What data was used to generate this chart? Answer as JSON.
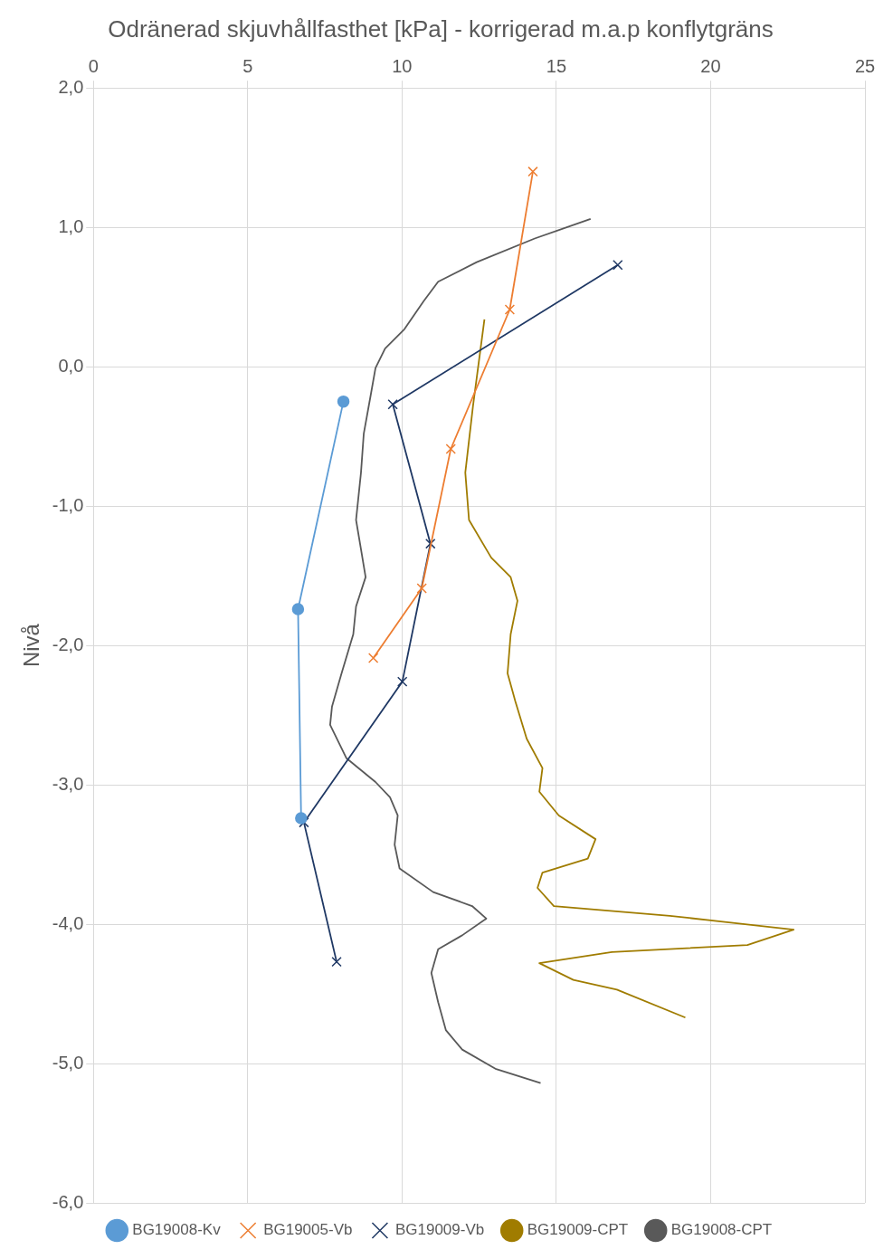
{
  "chart_data": {
    "type": "line",
    "title": "Odränerad skjuvhållfasthet [kPa] - korrigerad m.a.p konflytgräns",
    "ylabel": "Nivå",
    "xlim": [
      0,
      25
    ],
    "xticks": [
      0,
      5,
      10,
      15,
      20,
      25
    ],
    "ylim": [
      -6,
      2
    ],
    "yticks": [
      {
        "value": 2,
        "label": "2,0"
      },
      {
        "value": 1,
        "label": "1,0"
      },
      {
        "value": 0,
        "label": "0,0"
      },
      {
        "value": -1,
        "label": "-1,0"
      },
      {
        "value": -2,
        "label": "-2,0"
      },
      {
        "value": -3,
        "label": "-3,0"
      },
      {
        "value": -4,
        "label": "-4,0"
      },
      {
        "value": -5,
        "label": "-5,0"
      },
      {
        "value": -6,
        "label": "-6,0"
      }
    ],
    "grid": true,
    "legend": "bottom",
    "series": [
      {
        "name": "BG19008-Kv",
        "color": "#5b9bd5",
        "marker": "circle",
        "x": [
          8.1,
          6.63,
          6.73
        ],
        "values": [
          -0.25,
          -1.74,
          -3.24
        ]
      },
      {
        "name": "BG19005-Vb",
        "color": "#ed7d31",
        "marker": "cross",
        "x": [
          14.24,
          13.49,
          11.58,
          10.64,
          9.07
        ],
        "values": [
          1.4,
          0.41,
          -0.59,
          -1.59,
          -2.09
        ]
      },
      {
        "name": "BG19009-Vb",
        "color": "#1f3864",
        "marker": "cross",
        "x": [
          16.99,
          9.7,
          10.92,
          10.01,
          6.82,
          7.88
        ],
        "values": [
          0.73,
          -0.27,
          -1.27,
          -2.26,
          -3.27,
          -4.27
        ]
      },
      {
        "name": "BG19009-CPT",
        "color": "#a07c00",
        "marker": "none",
        "x": [
          12.67,
          12.3,
          12.05,
          12.17,
          12.89,
          13.52,
          13.74,
          13.52,
          13.42,
          13.67,
          14.04,
          14.55,
          14.45,
          15.08,
          16.27,
          16.02,
          14.55,
          14.39,
          14.92,
          18.68,
          22.69,
          21.19,
          16.8,
          14.45,
          15.55,
          16.96,
          19.18
        ],
        "values": [
          0.34,
          -0.28,
          -0.76,
          -1.1,
          -1.37,
          -1.51,
          -1.68,
          -1.92,
          -2.2,
          -2.4,
          -2.67,
          -2.88,
          -3.05,
          -3.22,
          -3.39,
          -3.53,
          -3.63,
          -3.74,
          -3.87,
          -3.94,
          -4.04,
          -4.15,
          -4.2,
          -4.28,
          -4.4,
          -4.47,
          -4.67
        ]
      },
      {
        "name": "BG19008-CPT",
        "color": "#595959",
        "marker": "none",
        "x": [
          16.11,
          14.3,
          12.42,
          11.17,
          10.7,
          10.08,
          9.45,
          9.14,
          8.98,
          8.76,
          8.67,
          8.51,
          8.67,
          8.82,
          8.51,
          8.42,
          8.04,
          7.73,
          7.67,
          8.2,
          9.14,
          9.61,
          9.86,
          9.76,
          9.92,
          11.01,
          12.27,
          12.73,
          11.95,
          11.17,
          10.95,
          11.17,
          11.42,
          11.95,
          13.05,
          14.49
        ],
        "values": [
          1.06,
          0.92,
          0.75,
          0.61,
          0.47,
          0.27,
          0.13,
          -0.01,
          -0.21,
          -0.48,
          -0.76,
          -1.1,
          -1.31,
          -1.51,
          -1.72,
          -1.92,
          -2.2,
          -2.44,
          -2.57,
          -2.81,
          -2.98,
          -3.09,
          -3.22,
          -3.43,
          -3.6,
          -3.77,
          -3.87,
          -3.96,
          -4.08,
          -4.18,
          -4.35,
          -4.56,
          -4.76,
          -4.9,
          -5.04,
          -5.14
        ]
      }
    ]
  }
}
